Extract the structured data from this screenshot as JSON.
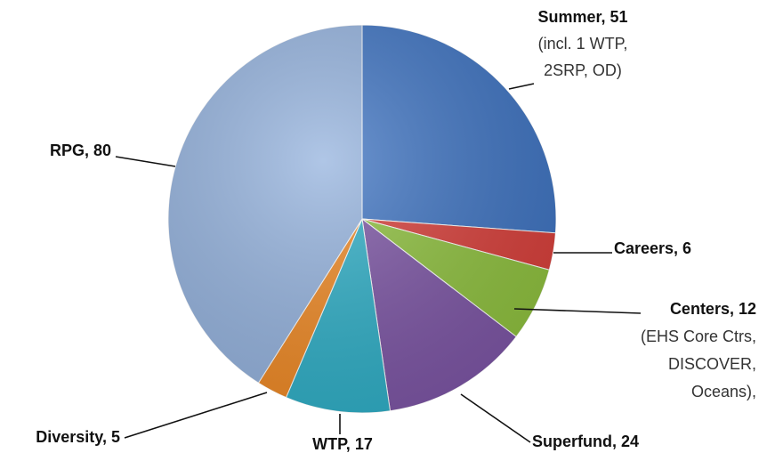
{
  "chart_data": {
    "type": "pie",
    "labels": [
      "Summer, 51",
      "Careers, 6",
      "Centers, 12",
      "Superfund, 24",
      "WTP, 17",
      "Diversity, 5",
      "RPG, 80"
    ],
    "values": [
      51,
      6,
      12,
      24,
      17,
      5,
      80
    ],
    "colors": [
      "#3f74c2",
      "#d8403b",
      "#8fc13f",
      "#7d56a5",
      "#30afc7",
      "#ef8a26",
      "#95b3de"
    ],
    "notes": [
      [
        "(incl. 1 WTP,",
        "2SRP, OD)"
      ],
      [],
      [
        "(EHS Core Ctrs,",
        "DISCOVER,",
        "Oceans),"
      ],
      [],
      [],
      [],
      []
    ]
  }
}
